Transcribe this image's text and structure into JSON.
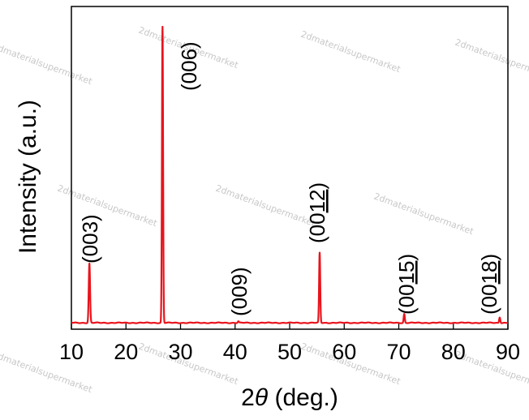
{
  "chart_data": {
    "type": "line",
    "title": "",
    "xlabel_prefix": "2",
    "xlabel_symbol": "θ",
    "xlabel_suffix": " (deg.)",
    "ylabel": "Intensity (a.u.)",
    "xlim": [
      10,
      90
    ],
    "ylim": [
      0,
      100
    ],
    "xticks": [
      10,
      20,
      30,
      40,
      50,
      60,
      70,
      80,
      90
    ],
    "yticks_shown": false,
    "grid": false,
    "legend": "none",
    "color": "#e8141c",
    "baseline": 0.5,
    "peaks": [
      {
        "x": 13.3,
        "y": 20.4,
        "label": "(003)",
        "underline": ""
      },
      {
        "x": 26.7,
        "y": 100.0,
        "label": "(006)",
        "underline": ""
      },
      {
        "x": 40.6,
        "y": 1.0,
        "label": "(009)",
        "underline": ""
      },
      {
        "x": 55.5,
        "y": 24.0,
        "label": "(0012)",
        "underline": "12"
      },
      {
        "x": 71.0,
        "y": 3.5,
        "label": "(0015)",
        "underline": "15"
      },
      {
        "x": 88.5,
        "y": 2.4,
        "label": "(0018)",
        "underline": "18"
      }
    ]
  },
  "watermark": "2dmaterialsupermarket"
}
